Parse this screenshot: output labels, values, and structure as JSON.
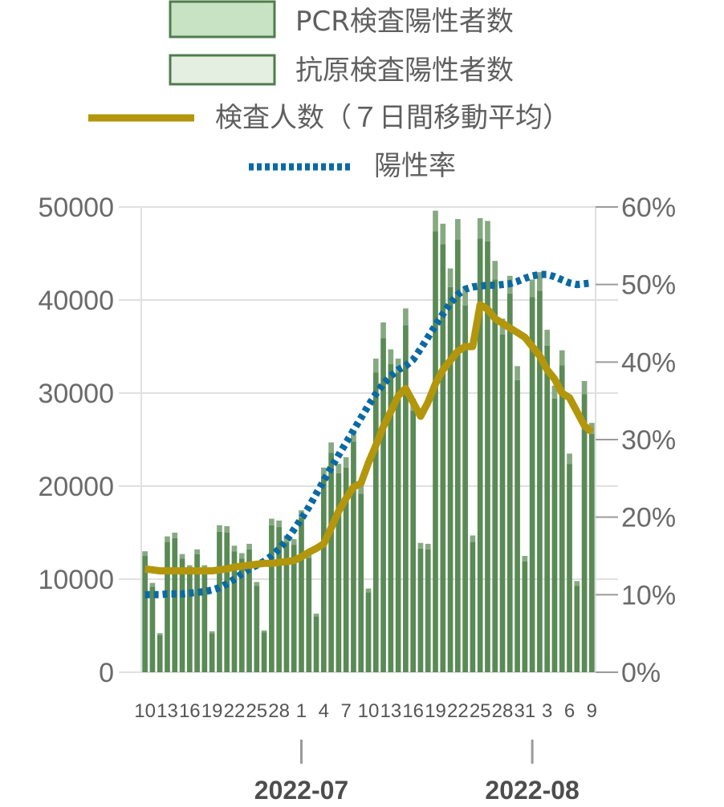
{
  "legend": {
    "pcr": "PCR検査陽性者数",
    "antigen": "抗原検査陽性者数",
    "tests": "検査人数（７日間移動平均）",
    "rate": "陽性率"
  },
  "colors": {
    "pcr_fill": "#c8e2c4",
    "antigen_fill": "#e4efe1",
    "legend_stroke": "#4f7c4c",
    "bar": "#5a8a55",
    "bar_light": "#86a982",
    "tests_line": "#b3960b",
    "rate_line": "#0b69a3",
    "grid": "#e0e0e0"
  },
  "chart_data": {
    "type": "bar",
    "x": [
      "10",
      "11",
      "12",
      "13",
      "14",
      "15",
      "16",
      "17",
      "18",
      "19",
      "20",
      "21",
      "22",
      "23",
      "24",
      "25",
      "26",
      "27",
      "28",
      "29",
      "30",
      "1",
      "2",
      "3",
      "4",
      "5",
      "6",
      "7",
      "8",
      "9",
      "10",
      "11",
      "12",
      "13",
      "14",
      "15",
      "16",
      "17",
      "18",
      "19",
      "20",
      "21",
      "22",
      "23",
      "24",
      "25",
      "26",
      "27",
      "28",
      "29",
      "30",
      "31",
      "1",
      "2",
      "3",
      "4",
      "5",
      "6",
      "7",
      "8",
      "9"
    ],
    "x_tick_labels": [
      "10",
      "13",
      "16",
      "19",
      "22",
      "25",
      "28",
      "1",
      "4",
      "7",
      "10",
      "13",
      "16",
      "19",
      "22",
      "25",
      "28",
      "31",
      "3",
      "6",
      "9"
    ],
    "month_labels": [
      "2022-07",
      "2022-08"
    ],
    "y_left": {
      "ticks": [
        "0",
        "10000",
        "20000",
        "30000",
        "40000",
        "50000"
      ],
      "range": [
        0,
        50000
      ]
    },
    "y_right": {
      "ticks": [
        "0%",
        "10%",
        "20%",
        "30%",
        "40%",
        "50%",
        "60%"
      ],
      "range": [
        0,
        60
      ]
    },
    "series": [
      {
        "name": "PCR検査陽性者数",
        "axis": "left",
        "values": [
          12500,
          9200,
          4000,
          14000,
          14400,
          12200,
          11000,
          12700,
          11000,
          4200,
          15100,
          15000,
          13000,
          12200,
          13200,
          9300,
          4300,
          15800,
          15600,
          14000,
          13700,
          16600,
          12300,
          6000,
          21000,
          23600,
          21400,
          22000,
          24800,
          19200,
          8600,
          32200,
          35900,
          33100,
          32200,
          37300,
          28100,
          13300,
          13200,
          47400,
          46000,
          41400,
          46500,
          39400,
          14000,
          46600,
          46300,
          42200,
          36300,
          40700,
          31400,
          11900,
          40300,
          41000,
          35100,
          29400,
          33000,
          22400,
          9300,
          29900,
          25600
        ]
      },
      {
        "name": "抗原検査陽性者数",
        "axis": "left",
        "values": [
          500,
          400,
          200,
          600,
          600,
          500,
          500,
          500,
          500,
          200,
          700,
          700,
          600,
          600,
          600,
          400,
          200,
          700,
          700,
          700,
          600,
          800,
          600,
          300,
          1000,
          1100,
          1000,
          1100,
          1200,
          900,
          400,
          1500,
          1700,
          1600,
          1500,
          1800,
          1300,
          600,
          600,
          2200,
          2200,
          2000,
          2200,
          1900,
          700,
          2200,
          2200,
          2000,
          1700,
          1900,
          1500,
          600,
          1900,
          2000,
          1700,
          1400,
          1600,
          1100,
          500,
          1400,
          1200
        ]
      },
      {
        "name": "検査人数（７日間移動平均）",
        "axis": "left",
        "type": "line",
        "values": [
          11100,
          11000,
          10900,
          10900,
          10900,
          10900,
          10900,
          10900,
          10900,
          10900,
          11000,
          11100,
          11300,
          11400,
          11500,
          11600,
          11700,
          11700,
          11800,
          11900,
          12000,
          12400,
          12900,
          13300,
          13800,
          15500,
          17300,
          18700,
          19900,
          20300,
          22500,
          24400,
          26400,
          28000,
          29700,
          30500,
          29000,
          27500,
          29000,
          31000,
          32500,
          33500,
          34500,
          35000,
          35000,
          39500,
          39000,
          38000,
          37500,
          37000,
          36500,
          36000,
          35000,
          34000,
          32500,
          31500,
          30000,
          29500,
          28000,
          26500,
          25800
        ]
      },
      {
        "name": "陽性率",
        "axis": "right",
        "type": "line",
        "values": [
          10.0,
          10.0,
          10.0,
          10.1,
          10.1,
          10.1,
          10.2,
          10.3,
          10.4,
          10.6,
          10.9,
          11.4,
          12.0,
          12.7,
          13.3,
          13.8,
          14.3,
          15.0,
          15.9,
          17.0,
          18.4,
          19.8,
          21.3,
          23.0,
          24.7,
          26.4,
          28.0,
          29.6,
          31.2,
          32.8,
          34.4,
          35.9,
          37.2,
          38.2,
          39.0,
          39.5,
          40.3,
          41.7,
          43.2,
          44.7,
          46.2,
          47.6,
          48.7,
          49.4,
          49.7,
          49.8,
          49.9,
          49.9,
          50.0,
          50.1,
          50.4,
          50.8,
          51.1,
          51.3,
          51.3,
          51.0,
          50.6,
          50.2,
          50.0,
          50.1,
          50.2
        ]
      }
    ]
  }
}
